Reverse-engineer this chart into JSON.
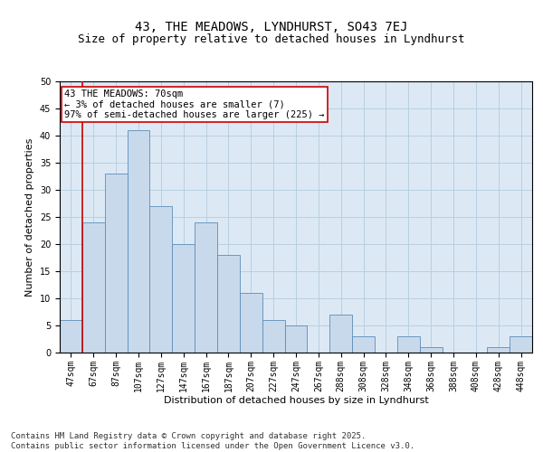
{
  "title": "43, THE MEADOWS, LYNDHURST, SO43 7EJ",
  "subtitle": "Size of property relative to detached houses in Lyndhurst",
  "xlabel": "Distribution of detached houses by size in Lyndhurst",
  "ylabel": "Number of detached properties",
  "categories": [
    "47sqm",
    "67sqm",
    "87sqm",
    "107sqm",
    "127sqm",
    "147sqm",
    "167sqm",
    "187sqm",
    "207sqm",
    "227sqm",
    "247sqm",
    "267sqm",
    "288sqm",
    "308sqm",
    "328sqm",
    "348sqm",
    "368sqm",
    "388sqm",
    "408sqm",
    "428sqm",
    "448sqm"
  ],
  "values": [
    6,
    24,
    33,
    41,
    27,
    20,
    24,
    18,
    11,
    6,
    5,
    0,
    7,
    3,
    0,
    3,
    1,
    0,
    0,
    1,
    3
  ],
  "bar_color": "#c9d9ec",
  "bar_edge_color": "#5b8db8",
  "vline_x_index": 1,
  "vline_color": "#cc0000",
  "annotation_text": "43 THE MEADOWS: 70sqm\n← 3% of detached houses are smaller (7)\n97% of semi-detached houses are larger (225) →",
  "annotation_box_facecolor": "#ffffff",
  "annotation_box_edgecolor": "#cc0000",
  "ylim": [
    0,
    50
  ],
  "yticks": [
    0,
    5,
    10,
    15,
    20,
    25,
    30,
    35,
    40,
    45,
    50
  ],
  "grid_color": "#b8cfe0",
  "background_color": "#dce9f5",
  "footer_text": "Contains HM Land Registry data © Crown copyright and database right 2025.\nContains public sector information licensed under the Open Government Licence v3.0.",
  "title_fontsize": 10,
  "subtitle_fontsize": 9,
  "axis_label_fontsize": 8,
  "tick_fontsize": 7,
  "annotation_fontsize": 7.5,
  "footer_fontsize": 6.5
}
